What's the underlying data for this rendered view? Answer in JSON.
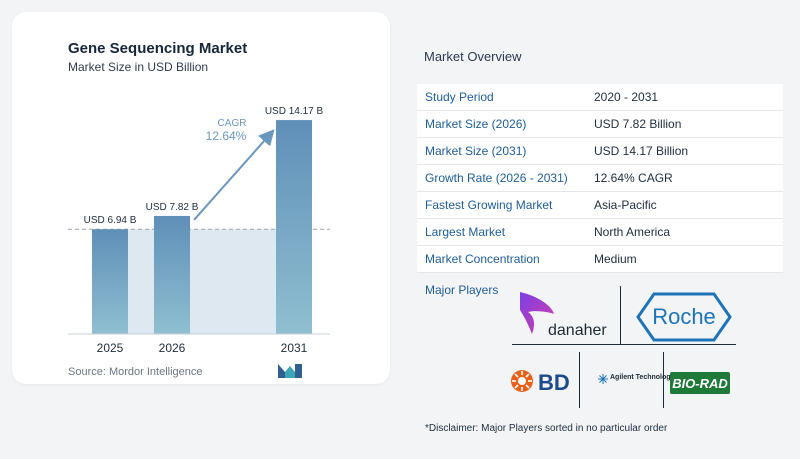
{
  "chart_card": {
    "title": "Gene Sequencing Market",
    "subtitle": "Market Size in USD Billion",
    "source": "Source:  Mordor Intelligence",
    "cagr_label": "CAGR",
    "cagr_value": "12.64%"
  },
  "chart_data": {
    "type": "bar",
    "title": "Gene Sequencing Market",
    "subtitle": "Market Size in USD Billion",
    "categories": [
      "2025",
      "2026",
      "2031"
    ],
    "values": [
      6.94,
      7.82,
      14.17
    ],
    "data_labels": [
      "USD 6.94 B",
      "USD 7.82 B",
      "USD 14.17 B"
    ],
    "ylim": [
      0,
      15.5
    ],
    "baseline_reference": 6.94,
    "annotation": {
      "label": "CAGR",
      "value": "12.64%"
    },
    "colors": {
      "bar_top": "#5f8fb8",
      "bar_bottom": "#8fbfd0",
      "shade": "#dde8f1",
      "arrow": "#6a97bf"
    },
    "grid": false
  },
  "overview": {
    "title": "Market Overview",
    "rows": [
      {
        "label": "Study Period",
        "value": "2020 - 2031"
      },
      {
        "label": "Market Size (2026)",
        "value": "USD 7.82 Billion"
      },
      {
        "label": "Market Size (2031)",
        "value": "USD 14.17 Billion"
      },
      {
        "label": "Growth Rate (2026 - 2031)",
        "value": "12.64% CAGR"
      },
      {
        "label": "Fastest Growing Market",
        "value": "Asia-Pacific"
      },
      {
        "label": "Largest Market",
        "value": "North America"
      },
      {
        "label": "Market Concentration",
        "value": "Medium"
      }
    ],
    "players_label": "Major Players",
    "players": [
      "danaher",
      "Roche",
      "BD",
      "Agilent Technologies",
      "BIO-RAD"
    ],
    "disclaimer": "*Disclaimer: Major Players sorted in no particular order"
  }
}
